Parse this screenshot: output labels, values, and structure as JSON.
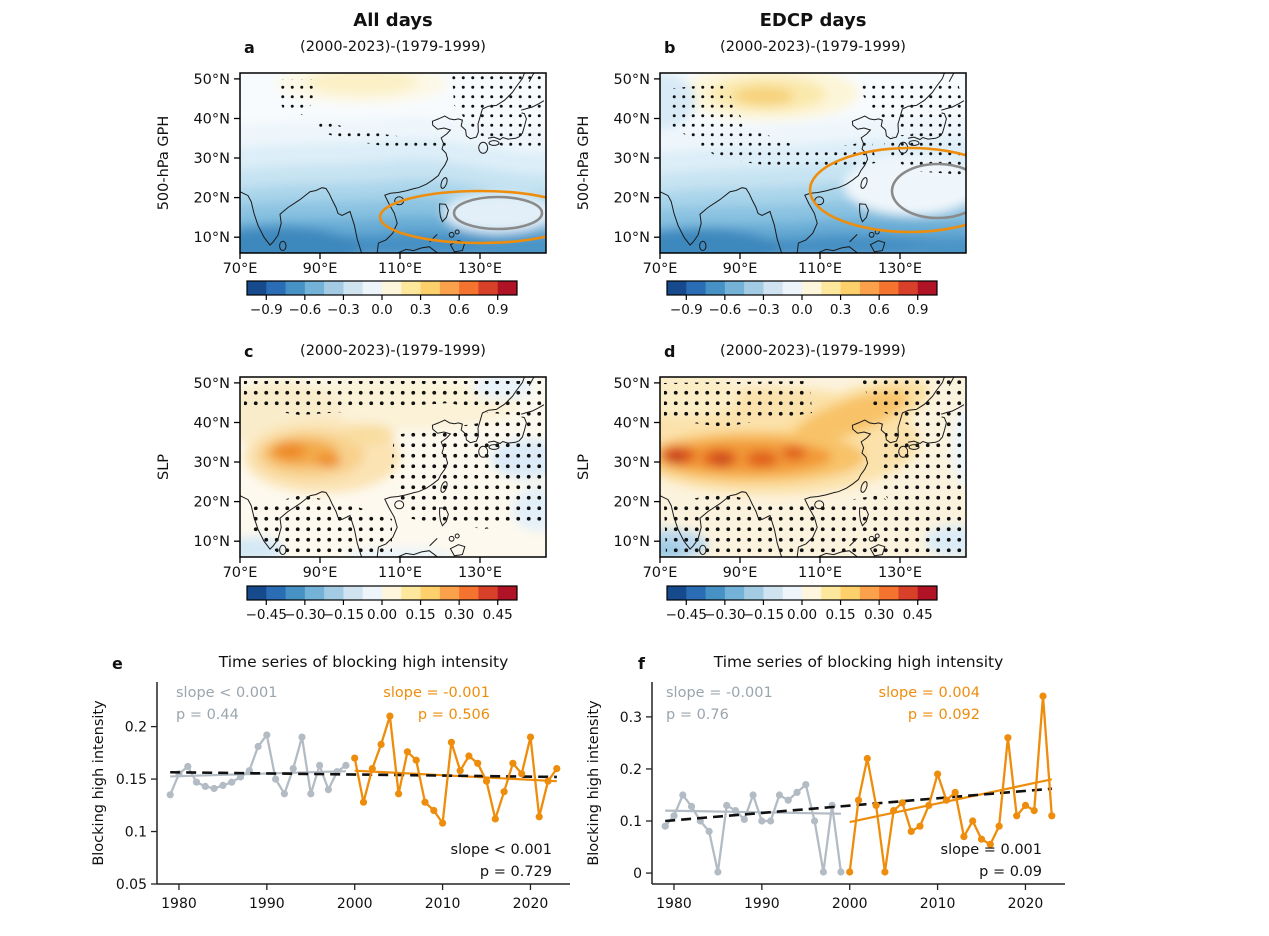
{
  "figure": {
    "columns": [
      {
        "title": "All days"
      },
      {
        "title": "EDCP days"
      }
    ],
    "colorbar_gph": {
      "ticks": [
        "−0.9",
        "−0.6",
        "−0.3",
        "0.0",
        "0.3",
        "0.6",
        "0.9"
      ]
    },
    "colorbar_slp": {
      "ticks": [
        "−0.45",
        "−0.30",
        "−0.15",
        "0.00",
        "0.15",
        "0.30",
        "0.45"
      ]
    },
    "colors": {
      "orange": "#ee8d0c",
      "series_gray": "#b3bcc4",
      "annotation_gray": "#9aa5ad",
      "contour_gray": "#8a8a8a",
      "black": "#111111",
      "colorbar": [
        "#174a8c",
        "#2a6db4",
        "#4792c5",
        "#74b2d8",
        "#a3cce4",
        "#cfe3f0",
        "#edf5fa",
        "#fdf5dc",
        "#fde79c",
        "#fdd06c",
        "#fba04b",
        "#f4732e",
        "#d8402a",
        "#b01326"
      ]
    }
  },
  "chart_data": [
    {
      "id": "a",
      "type": "map",
      "panel_label": "a",
      "column_title": "All days",
      "subtitle": "(2000-2023)-(1979-1999)",
      "ylabel": "500-hPa GPH",
      "lon_range": [
        70,
        146.5
      ],
      "lat_range": [
        6,
        51.5
      ],
      "lon_ticks": [
        "70°E",
        "90°E",
        "110°E",
        "130°E"
      ],
      "lat_ticks": [
        "50°N",
        "40°N",
        "30°N",
        "20°N",
        "10°N"
      ],
      "colorbar_ticks": [
        -0.9,
        -0.6,
        -0.3,
        0.0,
        0.3,
        0.6,
        0.9
      ],
      "description": "Normalized 500-hPa geopotential-height anomaly, (2000-2023) minus (1979-1999), all days: negative (blue) anomalies over South/Southeast Asia strongest south of 20N; weak positive (pale yellow) anomaly near 45-50N, 90-110E; stippled significance patches over the northwest interior and northeast Asia; orange and gray anomaly contours over the western North Pacific near 10-20N east of 105E."
    },
    {
      "id": "b",
      "type": "map",
      "panel_label": "b",
      "column_title": "EDCP days",
      "subtitle": "(2000-2023)-(1979-1999)",
      "ylabel": "500-hPa GPH",
      "lon_range": [
        70,
        146.5
      ],
      "lat_range": [
        6,
        51.5
      ],
      "lon_ticks": [
        "70°E",
        "90°E",
        "110°E",
        "130°E"
      ],
      "lat_ticks": [
        "50°N",
        "40°N",
        "30°N",
        "20°N",
        "10°N"
      ],
      "colorbar_ticks": [
        -0.9,
        -0.6,
        -0.3,
        0.0,
        0.3,
        0.6,
        0.9
      ],
      "description": "EDCP days: stronger positive (orange) anomaly centered near 44N, 95E with widespread stippling; blue negative anomalies to the south; enlarged orange and gray contours spanning roughly 12-33N east of 105E over the western North Pacific."
    },
    {
      "id": "c",
      "type": "map",
      "panel_label": "c",
      "subtitle": "(2000-2023)-(1979-1999)",
      "ylabel": "SLP",
      "lon_range": [
        70,
        146.5
      ],
      "lat_range": [
        6,
        51.5
      ],
      "lon_ticks": [
        "70°E",
        "90°E",
        "110°E",
        "130°E"
      ],
      "lat_ticks": [
        "50°N",
        "40°N",
        "30°N",
        "20°N",
        "10°N"
      ],
      "colorbar_ticks": [
        -0.45,
        -0.3,
        -0.15,
        0.0,
        0.15,
        0.3,
        0.45
      ],
      "description": "Normalized sea-level-pressure anomaly, all days: positive (orange) anomalies centered over the Tibetan Plateau near 30N, 75-100E; weak negative (light blue) patches east of Japan and near the equatorial margins; dense stippling over South and East Asia."
    },
    {
      "id": "d",
      "type": "map",
      "panel_label": "d",
      "subtitle": "(2000-2023)-(1979-1999)",
      "ylabel": "SLP",
      "lon_range": [
        70,
        146.5
      ],
      "lat_range": [
        6,
        51.5
      ],
      "lon_ticks": [
        "70°E",
        "90°E",
        "110°E",
        "130°E"
      ],
      "lat_ticks": [
        "50°N",
        "40°N",
        "30°N",
        "20°N",
        "10°N"
      ],
      "colorbar_ticks": [
        -0.45,
        -0.3,
        -0.15,
        0.0,
        0.15,
        0.3,
        0.45
      ],
      "description": "EDCP days: strong band of positive SLP anomalies (deep orange-red) along 25-40N from 70E to about 115E extending northeastward; light blue negatives south of India and far southeast; dense stippling nearly everywhere."
    },
    {
      "id": "e",
      "type": "line",
      "panel_label": "e",
      "title": "Time series of blocking high intensity",
      "ylabel": "Blocking high intensity",
      "xlim": [
        1977.5,
        2024.5
      ],
      "ylim": [
        0.05,
        0.2425
      ],
      "yticks": [
        0.05,
        0.1,
        0.15,
        0.2
      ],
      "ytick_labels": [
        "0.05",
        "0.1",
        "0.15",
        "0.2"
      ],
      "xticks": [
        1980,
        1990,
        2000,
        2010,
        2020
      ],
      "series": [
        {
          "name": "1979-1999",
          "color_key": "series_gray",
          "x_start": 1979,
          "values": [
            0.135,
            0.155,
            0.162,
            0.147,
            0.143,
            0.141,
            0.144,
            0.147,
            0.152,
            0.158,
            0.181,
            0.192,
            0.15,
            0.136,
            0.16,
            0.19,
            0.136,
            0.163,
            0.14,
            0.157,
            0.163
          ]
        },
        {
          "name": "2000-2023",
          "color_key": "orange",
          "x_start": 2000,
          "values": [
            0.17,
            0.128,
            0.16,
            0.183,
            0.21,
            0.136,
            0.176,
            0.168,
            0.128,
            0.12,
            0.108,
            0.185,
            0.158,
            0.172,
            0.165,
            0.148,
            0.112,
            0.138,
            0.165,
            0.155,
            0.19,
            0.114,
            0.148,
            0.16
          ]
        }
      ],
      "trend_lines": [
        {
          "name": "trend-1979-1999",
          "color_key": "series_gray",
          "x": [
            1979,
            1999
          ],
          "y": [
            0.1525,
            0.1575
          ]
        },
        {
          "name": "trend-2000-2023",
          "color_key": "orange",
          "x": [
            2000,
            2023
          ],
          "y": [
            0.158,
            0.148
          ]
        },
        {
          "name": "trend-all",
          "color_key": "black",
          "dashed": true,
          "x": [
            1979,
            2023
          ],
          "y": [
            0.1565,
            0.152
          ]
        }
      ],
      "annotations": [
        {
          "line1": "slope < 0.001",
          "line2": "p = 0.44",
          "color": "gray"
        },
        {
          "line1": "slope = -0.001",
          "line2": "p = 0.506",
          "color": "orange"
        },
        {
          "line1": "slope < 0.001",
          "line2": "p = 0.729",
          "color": "black"
        }
      ]
    },
    {
      "id": "f",
      "type": "line",
      "panel_label": "f",
      "title": "Time series of blocking high intensity",
      "ylabel": "Blocking high intensity",
      "xlim": [
        1977.5,
        2024.5
      ],
      "ylim": [
        -0.021,
        0.367
      ],
      "yticks": [
        0,
        0.1,
        0.2,
        0.3
      ],
      "ytick_labels": [
        "0",
        "0.1",
        "0.2",
        "0.3"
      ],
      "xticks": [
        1980,
        1990,
        2000,
        2010,
        2020
      ],
      "series": [
        {
          "name": "1979-1999",
          "color_key": "series_gray",
          "x_start": 1979,
          "values": [
            0.09,
            0.11,
            0.15,
            0.128,
            0.1,
            0.08,
            0.002,
            0.13,
            0.12,
            0.103,
            0.15,
            0.1,
            0.1,
            0.15,
            0.14,
            0.155,
            0.17,
            0.1,
            0.002,
            0.13,
            0.002
          ]
        },
        {
          "name": "2000-2023",
          "color_key": "orange",
          "x_start": 2000,
          "values": [
            0.002,
            0.14,
            0.22,
            0.13,
            0.002,
            0.12,
            0.135,
            0.08,
            0.09,
            0.13,
            0.19,
            0.14,
            0.155,
            0.07,
            0.1,
            0.065,
            0.055,
            0.09,
            0.26,
            0.11,
            0.13,
            0.12,
            0.34,
            0.11
          ]
        }
      ],
      "trend_lines": [
        {
          "name": "trend-1979-1999",
          "color_key": "series_gray",
          "x": [
            1979,
            1999
          ],
          "y": [
            0.12,
            0.114
          ]
        },
        {
          "name": "trend-2000-2023",
          "color_key": "orange",
          "x": [
            2000,
            2023
          ],
          "y": [
            0.098,
            0.18
          ]
        },
        {
          "name": "trend-all",
          "color_key": "black",
          "dashed": true,
          "x": [
            1979,
            2023
          ],
          "y": [
            0.1,
            0.162
          ]
        }
      ],
      "annotations": [
        {
          "line1": "slope = -0.001",
          "line2": "p = 0.76",
          "color": "gray"
        },
        {
          "line1": "slope = 0.004",
          "line2": "p = 0.092",
          "color": "orange"
        },
        {
          "line1": "slope = 0.001",
          "line2": "p = 0.09",
          "color": "black"
        }
      ]
    }
  ]
}
